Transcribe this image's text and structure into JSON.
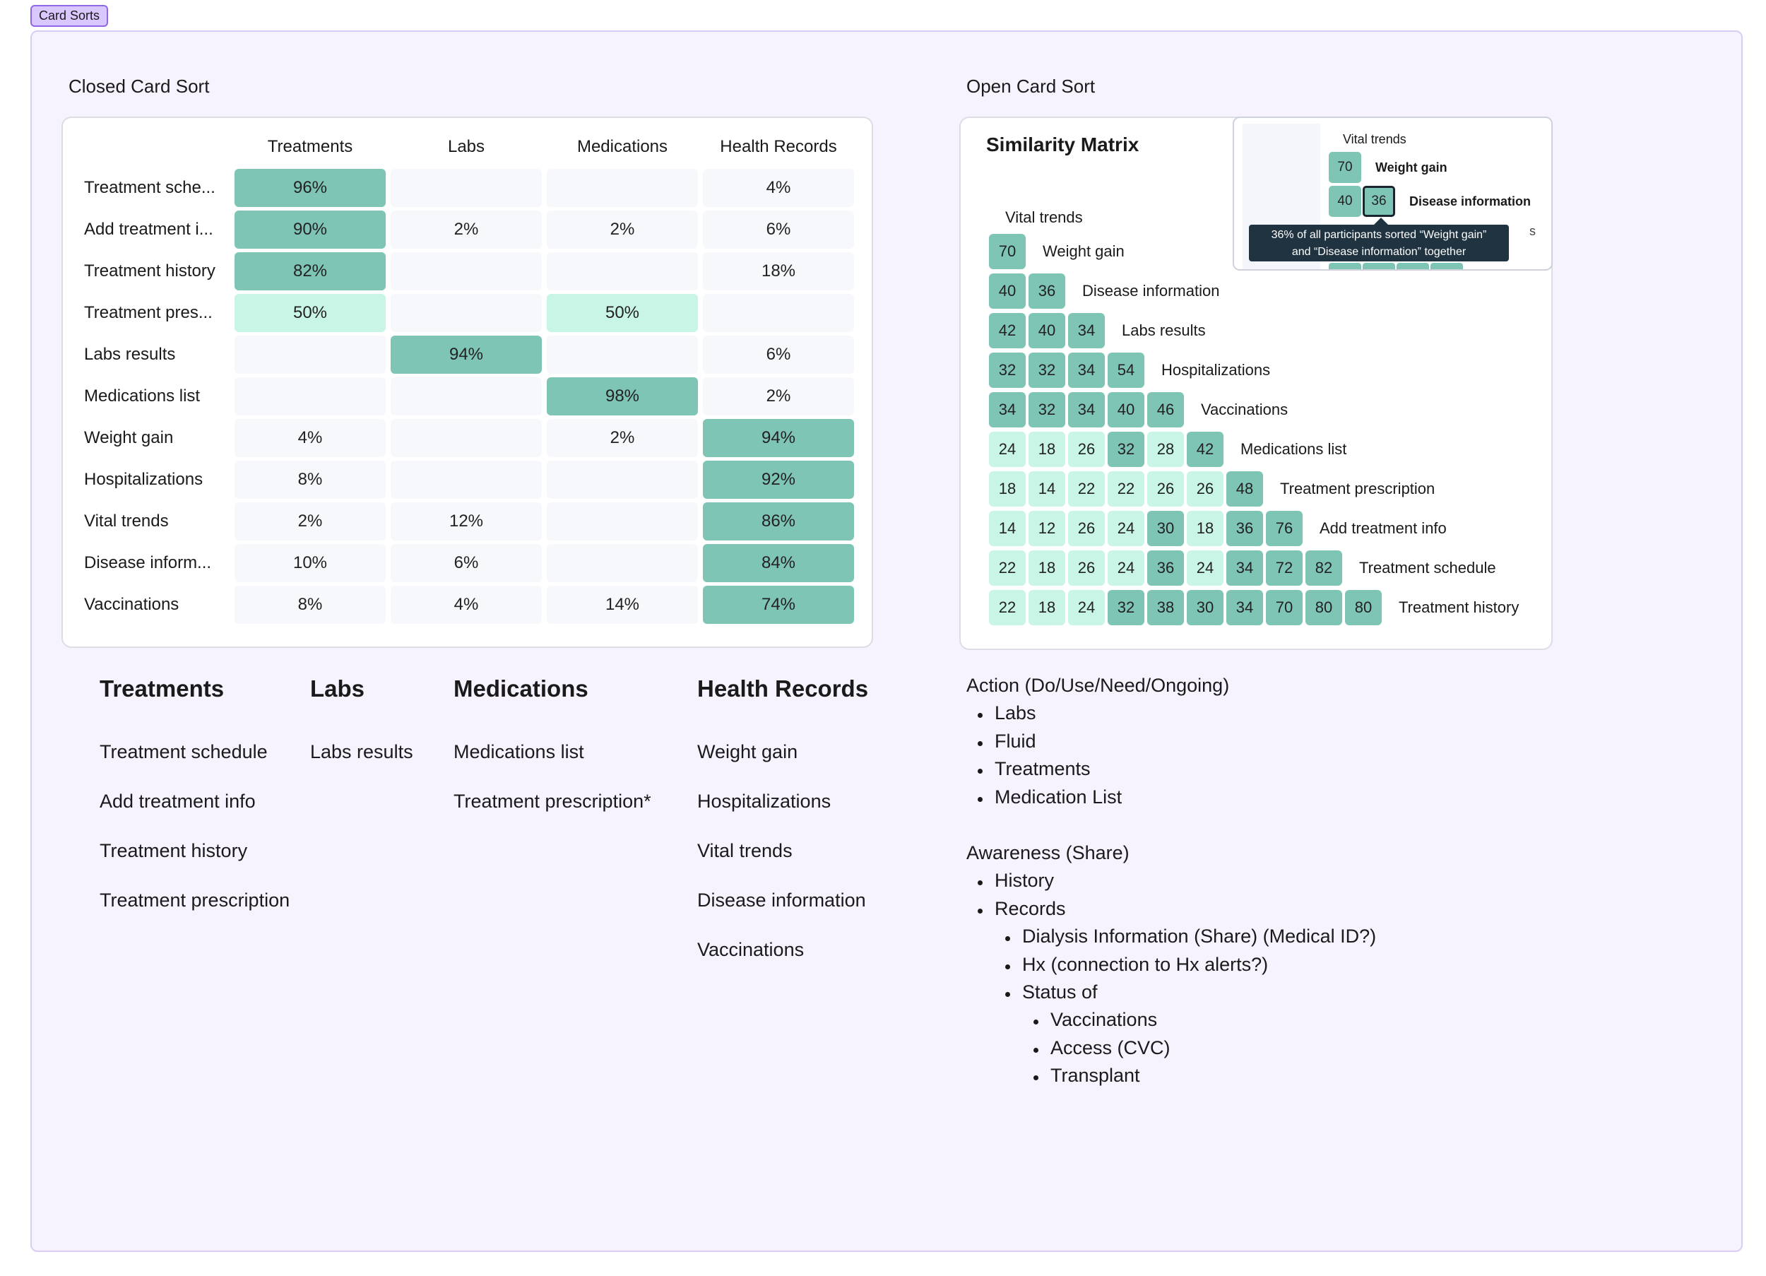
{
  "frame": {
    "tag": "Card Sorts"
  },
  "closed": {
    "title": "Closed Card Sort",
    "headers": [
      "Treatments",
      "Labs",
      "Medications",
      "Health Records"
    ],
    "rows": [
      {
        "label": "Treatment sche...",
        "values": [
          96,
          null,
          null,
          4
        ]
      },
      {
        "label": "Add treatment i...",
        "values": [
          90,
          2,
          2,
          6
        ]
      },
      {
        "label": "Treatment history",
        "values": [
          82,
          null,
          null,
          18
        ]
      },
      {
        "label": "Treatment pres...",
        "values": [
          50,
          null,
          50,
          null
        ]
      },
      {
        "label": "Labs results",
        "values": [
          null,
          94,
          null,
          6
        ]
      },
      {
        "label": "Medications list",
        "values": [
          null,
          null,
          98,
          2
        ]
      },
      {
        "label": "Weight gain",
        "values": [
          4,
          null,
          2,
          94
        ]
      },
      {
        "label": "Hospitalizations",
        "values": [
          8,
          null,
          null,
          92
        ]
      },
      {
        "label": "Vital trends",
        "values": [
          2,
          12,
          null,
          86
        ]
      },
      {
        "label": "Disease inform...",
        "values": [
          10,
          6,
          null,
          84
        ]
      },
      {
        "label": "Vaccinations",
        "values": [
          8,
          4,
          14,
          74
        ]
      }
    ],
    "colors": {
      "high": "#7fc5b6",
      "medium": "#c9f5e6",
      "empty": "#f6f8fb"
    }
  },
  "open": {
    "title": "Open Card Sort",
    "matrix_title": "Similarity Matrix",
    "top_label": "Vital trends",
    "rows": [
      {
        "label": "Weight gain",
        "values": [
          70
        ]
      },
      {
        "label": "Disease information",
        "values": [
          40,
          36
        ]
      },
      {
        "label": "Labs results",
        "values": [
          42,
          40,
          34
        ]
      },
      {
        "label": "Hospitalizations",
        "values": [
          32,
          32,
          34,
          54
        ]
      },
      {
        "label": "Vaccinations",
        "values": [
          34,
          32,
          34,
          40,
          46
        ]
      },
      {
        "label": "Medications list",
        "values": [
          24,
          18,
          26,
          32,
          28,
          42
        ]
      },
      {
        "label": "Treatment prescription",
        "values": [
          18,
          14,
          22,
          22,
          26,
          26,
          48
        ]
      },
      {
        "label": "Add treatment info",
        "values": [
          14,
          12,
          26,
          24,
          30,
          18,
          36,
          76
        ]
      },
      {
        "label": "Treatment schedule",
        "values": [
          22,
          18,
          26,
          24,
          36,
          24,
          34,
          72,
          82
        ]
      },
      {
        "label": "Treatment history",
        "values": [
          22,
          18,
          24,
          32,
          38,
          30,
          34,
          70,
          80,
          80
        ]
      }
    ],
    "colors": {
      "high": "#7fc5b6",
      "low": "#c9f5e6"
    },
    "threshold": 30,
    "zoom": {
      "top_label": "Vital trends",
      "row1": {
        "value": 70,
        "label": "Weight gain"
      },
      "row2": {
        "values": [
          40,
          36
        ],
        "label": "Disease information"
      },
      "partial_text": "s"
    },
    "tooltip": {
      "line1": "36% of all participants sorted “Weight gain”",
      "line2": "and “Disease information” together"
    }
  },
  "categories": [
    {
      "name": "Treatments",
      "items": [
        "Treatment schedule",
        "Add treatment info",
        "Treatment history",
        "Treatment prescription"
      ]
    },
    {
      "name": "Labs",
      "items": [
        "Labs results"
      ]
    },
    {
      "name": "Medications",
      "items": [
        "Medications list",
        "Treatment prescription*"
      ]
    },
    {
      "name": "Health Records",
      "items": [
        "Weight gain",
        "Hospitalizations",
        "Vital trends",
        "Disease information",
        "Vaccinations"
      ]
    }
  ],
  "notes": {
    "action_heading": "Action (Do/Use/Need/Ongoing)",
    "action_items": [
      "Labs",
      "Fluid",
      "Treatments",
      "Medication List"
    ],
    "awareness_heading": "Awareness (Share)",
    "awareness_items": [
      "History",
      "Records"
    ],
    "records_sub": [
      "Dialysis Information (Share) (Medical ID?)",
      "Hx (connection to Hx alerts?)",
      "Status of"
    ],
    "status_sub": [
      "Vaccinations",
      "Access (CVC)",
      "Transplant"
    ]
  }
}
